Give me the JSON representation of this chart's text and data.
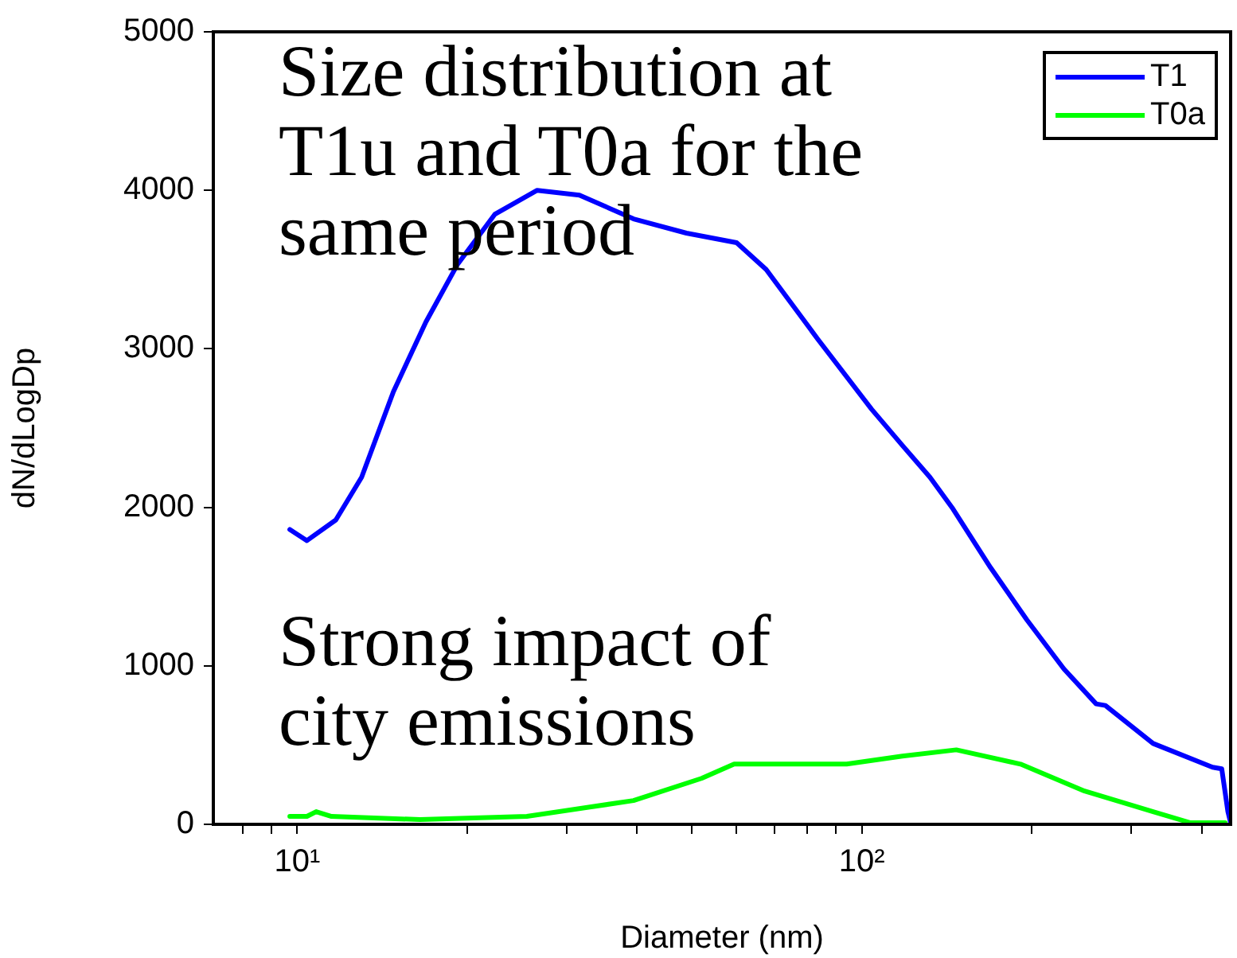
{
  "chart_data": {
    "type": "line",
    "xlabel": "Diameter (nm)",
    "ylabel": "dN/dLogDp",
    "log": "x",
    "grid": false,
    "legend": "top right",
    "marker": "none",
    "line_style": "solid",
    "xlim": [
      7.1,
      450
    ],
    "ylim": [
      0,
      5000
    ],
    "xticks": [
      {
        "value": 8,
        "label": null
      },
      {
        "value": 9,
        "label": null
      },
      {
        "value": 10,
        "label": "10¹"
      },
      {
        "value": 20,
        "label": null
      },
      {
        "value": 30,
        "label": null
      },
      {
        "value": 40,
        "label": null
      },
      {
        "value": 50,
        "label": null
      },
      {
        "value": 60,
        "label": null
      },
      {
        "value": 70,
        "label": null
      },
      {
        "value": 80,
        "label": null
      },
      {
        "value": 90,
        "label": null
      },
      {
        "value": 100,
        "label": "10²"
      },
      {
        "value": 200,
        "label": null
      },
      {
        "value": 300,
        "label": null
      },
      {
        "value": 400,
        "label": null
      }
    ],
    "yticks": [
      0,
      1000,
      2000,
      3000,
      4000,
      5000
    ],
    "annotations": [
      "Size distribution at T1u and T0a for the same period",
      "Strong impact of city emissions"
    ],
    "series": [
      {
        "name": "T1",
        "color": "#0000ff",
        "x": [
          9.7,
          10.4,
          11.7,
          13.0,
          14.8,
          16.9,
          19.2,
          22.4,
          26.6,
          31.6,
          39.4,
          48.9,
          60.0,
          67.7,
          83.6,
          104,
          118,
          132,
          145,
          169,
          196,
          228,
          260,
          270,
          328,
          418,
          434,
          445,
          450
        ],
        "values": [
          1860,
          1790,
          1920,
          2190,
          2730,
          3170,
          3530,
          3850,
          4000,
          3970,
          3820,
          3730,
          3670,
          3500,
          3060,
          2620,
          2390,
          2190,
          1990,
          1620,
          1290,
          980,
          760,
          750,
          510,
          360,
          350,
          80,
          10
        ]
      },
      {
        "name": "T0a",
        "color": "#00ff00",
        "x": [
          9.7,
          10.4,
          10.8,
          11.5,
          16.5,
          25.5,
          39.4,
          52,
          59.4,
          69,
          94,
          118,
          147,
          191,
          248,
          328,
          382,
          440
        ],
        "values": [
          50,
          50,
          80,
          50,
          30,
          50,
          150,
          290,
          380,
          380,
          380,
          430,
          470,
          380,
          210,
          80,
          10,
          10
        ]
      }
    ]
  }
}
